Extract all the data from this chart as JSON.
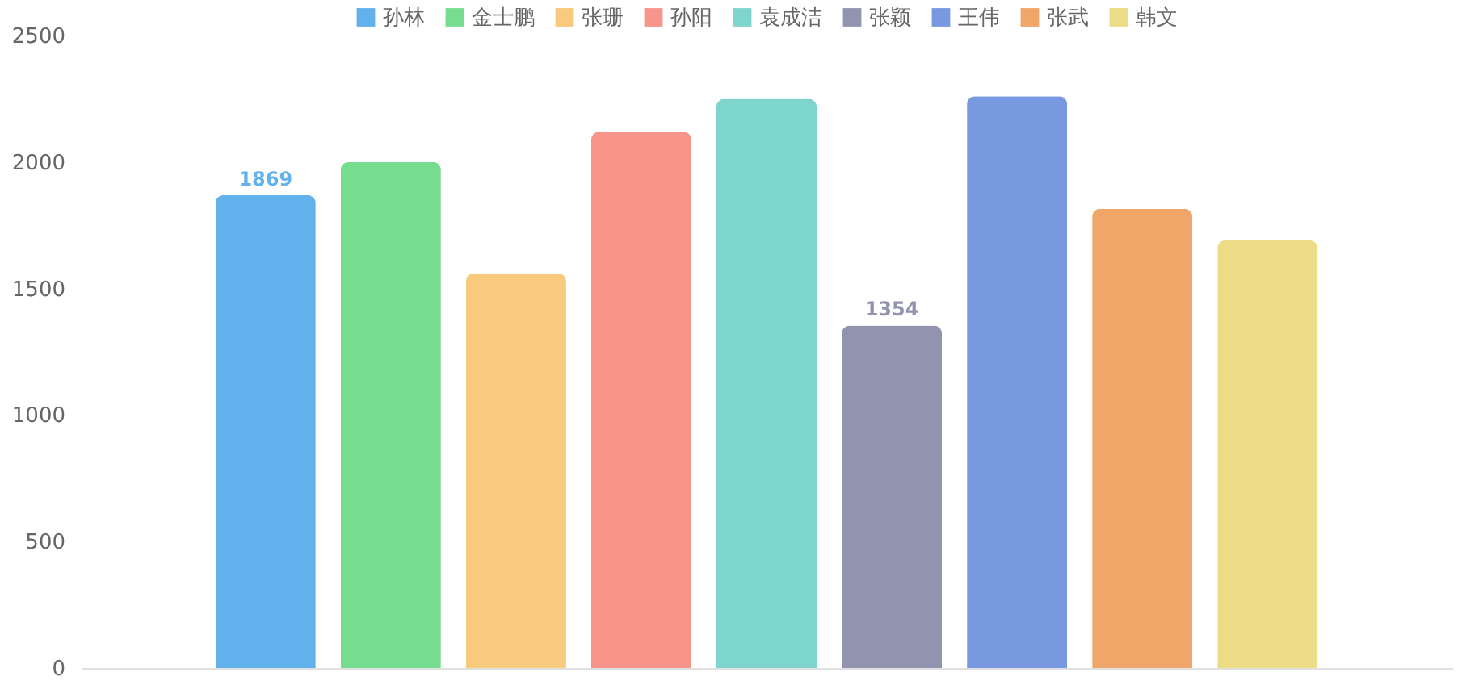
{
  "chart_data": {
    "type": "bar",
    "categories": [
      null
    ],
    "series": [
      {
        "name": "孙林",
        "color": "#62b0ec",
        "values": [
          1869
        ],
        "value_labels": [
          "1869"
        ]
      },
      {
        "name": "金士鹏",
        "color": "#76dc8f",
        "values": [
          2000
        ]
      },
      {
        "name": "张珊",
        "color": "#f8ca7e",
        "values": [
          1560
        ]
      },
      {
        "name": "孙阳",
        "color": "#f8958a",
        "values": [
          2120
        ]
      },
      {
        "name": "袁成洁",
        "color": "#7dd5cd",
        "values": [
          2250
        ]
      },
      {
        "name": "张颖",
        "color": "#9293af",
        "values": [
          1354
        ],
        "value_labels": [
          "1354"
        ]
      },
      {
        "name": "王伟",
        "color": "#7899e0",
        "values": [
          2260
        ]
      },
      {
        "name": "张武",
        "color": "#efa668",
        "values": [
          1815
        ]
      },
      {
        "name": "韩文",
        "color": "#ecdc86",
        "values": [
          1690
        ]
      }
    ],
    "ylim": [
      0,
      2500
    ],
    "yticks": [
      0,
      500,
      1000,
      1500,
      2000,
      2500
    ],
    "grid": false,
    "legend": "top"
  }
}
